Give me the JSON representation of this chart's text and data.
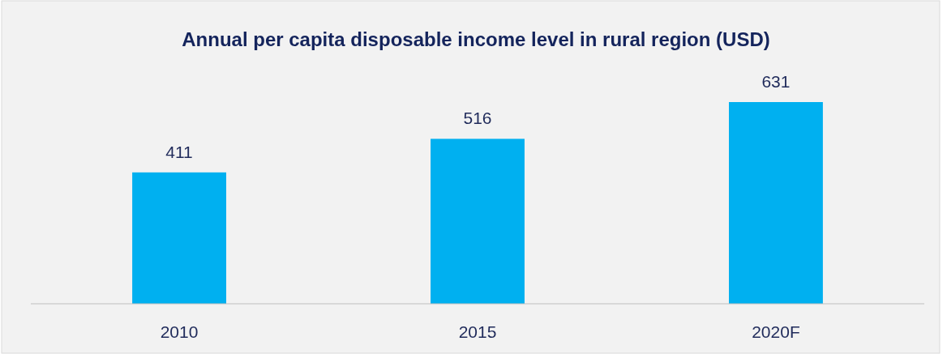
{
  "chart_data": {
    "type": "bar",
    "title": "Annual per capita disposable income level in rural region (USD)",
    "categories": [
      "2010",
      "2015",
      "2020F"
    ],
    "values": [
      411,
      516,
      631
    ],
    "color": "#00b0f0",
    "data_labels": true
  }
}
